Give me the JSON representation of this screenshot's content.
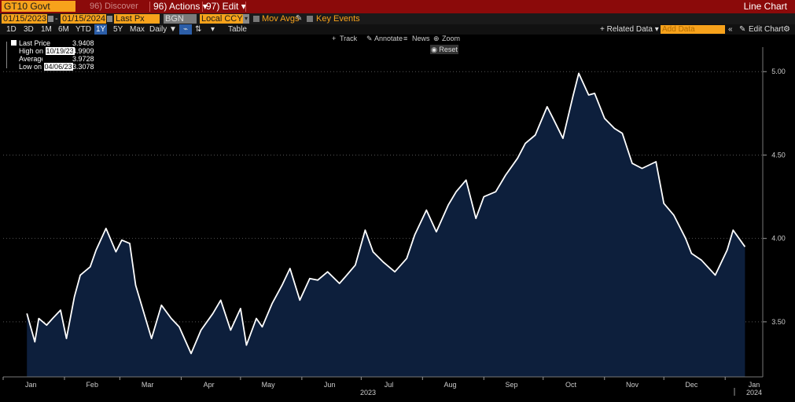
{
  "toolbar": {
    "ticker": "GT10 Govt",
    "discover": "96) Discover",
    "actions": "96) Actions ▾",
    "edit": "97) Edit ▾",
    "title": "Line Chart"
  },
  "controls": {
    "start_date": "01/15/2023",
    "end_date": "01/15/2024",
    "field": "Last Px",
    "source": "BGN",
    "currency": "Local CCY",
    "mov_avgs": "Mov Avgs",
    "key_events": "Key Events"
  },
  "ranges": {
    "items": [
      "1D",
      "3D",
      "1M",
      "6M",
      "YTD",
      "1Y",
      "5Y",
      "Max"
    ],
    "selected": "1Y",
    "frequency": "Daily ▼",
    "table": "Table",
    "related_data": "+ Related Data ▾",
    "add_data_placeholder": "Add Data",
    "edit_chart": "Edit Chart"
  },
  "chart_tools": {
    "track": "Track",
    "annotate": "Annotate",
    "news": "News",
    "zoom": "Zoom",
    "reset": "Reset"
  },
  "legend": {
    "last_label": "Last Price",
    "last_value": "3.9408",
    "high_label": "High on",
    "high_date": "10/19/23",
    "high_value": "4.9909",
    "avg_label": "Average",
    "avg_value": "3.9728",
    "low_label": "Low on",
    "low_date": "04/06/23",
    "low_value": "3.3078"
  },
  "colors": {
    "line": "#ffffff",
    "fill": "#0d1f3c",
    "accent": "#f7a21b",
    "titlebar": "#8b0a0a"
  },
  "chart_data": {
    "type": "area",
    "ylim": [
      3.17,
      5.1
    ],
    "yticks": [
      "3.50",
      "4.00",
      "4.50",
      "5.00"
    ],
    "xtick_labels": [
      "Jan",
      "Feb",
      "Mar",
      "Apr",
      "May",
      "Jun",
      "Jul",
      "Aug",
      "Sep",
      "Oct",
      "Nov",
      "Dec",
      "Jan"
    ],
    "year_labels": [
      "2023",
      "2024"
    ],
    "x": [
      "2023-01-13",
      "2023-01-17",
      "2023-01-19",
      "2023-01-23",
      "2023-01-26",
      "2023-01-30",
      "2023-02-02",
      "2023-02-06",
      "2023-02-09",
      "2023-02-14",
      "2023-02-17",
      "2023-02-22",
      "2023-02-27",
      "2023-03-02",
      "2023-03-06",
      "2023-03-09",
      "2023-03-13",
      "2023-03-17",
      "2023-03-22",
      "2023-03-27",
      "2023-03-31",
      "2023-04-06",
      "2023-04-11",
      "2023-04-17",
      "2023-04-21",
      "2023-04-26",
      "2023-05-01",
      "2023-05-04",
      "2023-05-09",
      "2023-05-12",
      "2023-05-17",
      "2023-05-22",
      "2023-05-26",
      "2023-05-31",
      "2023-06-05",
      "2023-06-09",
      "2023-06-14",
      "2023-06-20",
      "2023-06-23",
      "2023-06-28",
      "2023-07-03",
      "2023-07-07",
      "2023-07-12",
      "2023-07-18",
      "2023-07-24",
      "2023-07-28",
      "2023-08-03",
      "2023-08-08",
      "2023-08-14",
      "2023-08-18",
      "2023-08-23",
      "2023-08-28",
      "2023-09-01",
      "2023-09-07",
      "2023-09-12",
      "2023-09-18",
      "2023-09-22",
      "2023-09-27",
      "2023-10-03",
      "2023-10-06",
      "2023-10-11",
      "2023-10-16",
      "2023-10-19",
      "2023-10-24",
      "2023-10-27",
      "2023-11-01",
      "2023-11-06",
      "2023-11-10",
      "2023-11-15",
      "2023-11-20",
      "2023-11-27",
      "2023-12-01",
      "2023-12-06",
      "2023-12-12",
      "2023-12-15",
      "2023-12-20",
      "2023-12-27",
      "2024-01-02",
      "2024-01-05",
      "2024-01-11"
    ],
    "series": [
      {
        "values": [
          3.55,
          3.38,
          3.52,
          3.48,
          3.52,
          3.57,
          3.4,
          3.65,
          3.78,
          3.83,
          3.93,
          4.06,
          3.92,
          3.99,
          3.97,
          3.72,
          3.56,
          3.4,
          3.6,
          3.52,
          3.47,
          3.31,
          3.45,
          3.55,
          3.63,
          3.45,
          3.58,
          3.36,
          3.52,
          3.47,
          3.61,
          3.72,
          3.82,
          3.63,
          3.76,
          3.75,
          3.8,
          3.73,
          3.77,
          3.84,
          4.05,
          3.92,
          3.86,
          3.8,
          3.88,
          4.02,
          4.17,
          4.04,
          4.2,
          4.28,
          4.35,
          4.12,
          4.25,
          4.28,
          4.38,
          4.48,
          4.57,
          4.62,
          4.79,
          4.72,
          4.6,
          4.85,
          4.99,
          4.86,
          4.87,
          4.72,
          4.66,
          4.63,
          4.45,
          4.42,
          4.46,
          4.21,
          4.14,
          4.0,
          3.91,
          3.87,
          3.78,
          3.93,
          4.05,
          3.95
        ]
      }
    ]
  }
}
